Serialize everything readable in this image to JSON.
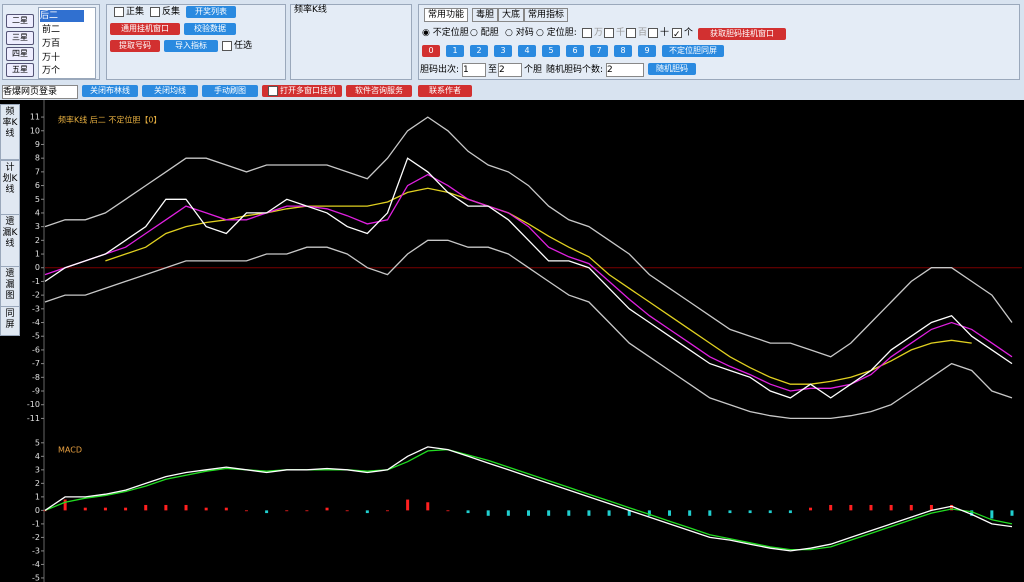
{
  "star_buttons": [
    "二星",
    "三星",
    "四星",
    "五星"
  ],
  "position_list": [
    "后二",
    "前二",
    "万百",
    "万十",
    "万个"
  ],
  "panel1": {
    "check1": "正集",
    "check2": "反集",
    "btn_list": "开奖列表",
    "btn_window": "通用挂机窗口",
    "btn_check": "校验数据",
    "btn_extract": "提取号码",
    "btn_import": "导入指标",
    "check_any": "任选"
  },
  "group_title": "频率K线",
  "tabs": [
    "常用功能",
    "毒胆",
    "大底",
    "常用指标"
  ],
  "radios": [
    "不定位胆",
    "配胆",
    "对码",
    "定位胆:"
  ],
  "digit_checks": [
    "万",
    "千",
    "百",
    "十",
    "个"
  ],
  "btn_get": "获取胆码挂机窗口",
  "numbers": [
    "0",
    "1",
    "2",
    "3",
    "4",
    "5",
    "6",
    "7",
    "8",
    "9"
  ],
  "btn_same": "不定位胆同屏",
  "count_row": {
    "label": "胆码出次:",
    "from": "1",
    "to_word": "至",
    "to": "2",
    "unit": "个胆",
    "random_label": "随机胆码个数:",
    "random_count": "2",
    "random_btn": "随机胆码"
  },
  "toolbar": {
    "login": "香爆网页登录",
    "buttons": [
      "关闭布林线",
      "关闭均线",
      "手动刷图",
      "打开多窗口挂机",
      "软件咨询服务",
      "联系作者"
    ]
  },
  "side_tabs": [
    "频率K线",
    "计划K线",
    "遗漏K线",
    "遗漏图",
    "同屏"
  ],
  "chart_data": [
    {
      "type": "line",
      "title": "频率K线 后二 不定位胆【0】",
      "ylim": [
        -11.7,
        12.1
      ],
      "yticks": [
        11,
        10,
        9,
        8,
        7,
        6,
        5,
        4,
        3,
        2,
        1,
        0,
        -1,
        -2,
        -3,
        -4,
        -5,
        -6,
        -7,
        -8,
        -9,
        -10,
        -11
      ],
      "baseline_color": "#7a0000",
      "series": [
        {
          "color": "#c8c8c8",
          "values": [
            3,
            3.5,
            3.5,
            4,
            5,
            6,
            7,
            8,
            8,
            7.5,
            7,
            7.5,
            7.5,
            7.5,
            7.5,
            7,
            6.5,
            8,
            10,
            11,
            10,
            8.5,
            7.5,
            7,
            6,
            4.5,
            3.5,
            3,
            2,
            1,
            -0.5,
            -1.5,
            -2.5,
            -3.5,
            -4.5,
            -5,
            -5.5,
            -5.5,
            -6,
            -6.5,
            -5.5,
            -4,
            -2.5,
            -1,
            0,
            0,
            -1,
            -2,
            -4
          ]
        },
        {
          "color": "#c8c8c8",
          "values": [
            -2.5,
            -2,
            -2,
            -1.5,
            -1,
            -0.5,
            0,
            0.5,
            0.5,
            0.5,
            0.5,
            1,
            1,
            1.5,
            1.5,
            1,
            0,
            -0.5,
            1,
            2,
            2,
            1.5,
            1.5,
            1,
            0,
            -1,
            -2,
            -2.5,
            -4,
            -5.5,
            -6.5,
            -7.5,
            -8.5,
            -9.5,
            -10,
            -10.5,
            -10.8,
            -11,
            -11,
            -11,
            -10.8,
            -10.5,
            -10,
            -9,
            -8,
            -7,
            -7.5,
            -9,
            -9.5
          ]
        },
        {
          "color": "#e0d020",
          "values": [
            null,
            null,
            null,
            0.5,
            1,
            1.5,
            2.5,
            3,
            3.3,
            3.5,
            3.8,
            4,
            4.3,
            4.5,
            4.5,
            4.5,
            4.5,
            4.8,
            5.5,
            5.8,
            5.5,
            5,
            4.5,
            4,
            3.2,
            2.3,
            1.5,
            0.8,
            -0.5,
            -1.5,
            -2.5,
            -3.5,
            -4.5,
            -5.5,
            -6.5,
            -7.3,
            -8,
            -8.5,
            -8.5,
            -8.3,
            -8,
            -7.5,
            -6.8,
            -6,
            -5.5,
            -5.3,
            -5.5,
            null,
            null
          ]
        },
        {
          "color": "#e020e0",
          "values": [
            -0.5,
            0,
            0.5,
            1,
            1.5,
            2.5,
            3.5,
            4.5,
            4,
            3.5,
            3.5,
            4,
            4.5,
            4.5,
            4.3,
            3.8,
            3.2,
            3.5,
            6,
            6.8,
            6,
            5,
            4.5,
            4,
            3,
            1.5,
            0.8,
            0.3,
            -1,
            -2.3,
            -3.5,
            -4.5,
            -5.5,
            -6.5,
            -7.2,
            -7.8,
            -8.5,
            -9,
            -8.8,
            -8.8,
            -8.5,
            -7.8,
            -6.5,
            -5.5,
            -4.5,
            -4,
            -4.5,
            -5.5,
            -6.5
          ]
        },
        {
          "color": "#ffffff",
          "values": [
            -1,
            0,
            0.5,
            1,
            2,
            3,
            5,
            5,
            3,
            2.5,
            4,
            4,
            5,
            4.5,
            4,
            3,
            2.5,
            4,
            8,
            7,
            5.5,
            4.5,
            4.5,
            3.5,
            2,
            0.5,
            0.5,
            0,
            -1.5,
            -3,
            -4,
            -5,
            -6,
            -7,
            -7.5,
            -8,
            -9,
            -9.5,
            -8.5,
            -9.5,
            -8.5,
            -7.5,
            -6,
            -5,
            -4,
            -3.5,
            -5,
            -6,
            -7
          ]
        }
      ]
    },
    {
      "type": "macd",
      "title": "MACD",
      "ylim": [
        -5.3,
        5.8
      ],
      "yticks": [
        5,
        4,
        3,
        2,
        1,
        0,
        -1,
        -2,
        -3,
        -4,
        -5
      ],
      "series": [
        {
          "type": "bar",
          "up_color": "#ff2020",
          "down_color": "#20d0d0",
          "values": [
            0,
            0.8,
            0.2,
            0.2,
            0.2,
            0.4,
            0.4,
            0.4,
            0.2,
            0.2,
            0,
            -0.2,
            0,
            0,
            0.2,
            0,
            -0.2,
            0,
            0.8,
            0.6,
            0,
            -0.2,
            -0.4,
            -0.4,
            -0.4,
            -0.4,
            -0.4,
            -0.4,
            -0.4,
            -0.4,
            -0.4,
            -0.4,
            -0.4,
            -0.4,
            -0.2,
            -0.2,
            -0.2,
            -0.2,
            0.2,
            0.4,
            0.4,
            0.4,
            0.4,
            0.4,
            0.4,
            0.4,
            -0.4,
            -0.6,
            -0.4
          ]
        },
        {
          "type": "line",
          "color": "#22dd22",
          "values": [
            0,
            0.6,
            0.9,
            1.1,
            1.4,
            1.8,
            2.3,
            2.6,
            2.9,
            3.1,
            3,
            2.9,
            3,
            3,
            3,
            3,
            2.9,
            3,
            3.6,
            4.4,
            4.5,
            4.1,
            3.7,
            3.2,
            2.7,
            2.2,
            1.7,
            1.2,
            0.7,
            0.2,
            -0.3,
            -0.8,
            -1.3,
            -1.8,
            -2.1,
            -2.4,
            -2.7,
            -2.9,
            -2.9,
            -2.7,
            -2.2,
            -1.7,
            -1.2,
            -0.7,
            -0.2,
            0.1,
            -0.1,
            -0.7,
            -1
          ]
        },
        {
          "type": "line",
          "color": "#ffffff",
          "values": [
            0,
            1,
            1,
            1.2,
            1.5,
            2,
            2.5,
            2.8,
            3,
            3.2,
            3,
            2.8,
            3,
            3,
            3.1,
            3,
            2.8,
            3,
            4,
            4.7,
            4.5,
            4,
            3.5,
            3,
            2.5,
            2,
            1.5,
            1,
            0.5,
            0,
            -0.5,
            -1,
            -1.5,
            -2,
            -2.2,
            -2.5,
            -2.8,
            -3,
            -2.8,
            -2.5,
            -2,
            -1.5,
            -1,
            -0.5,
            0,
            0.3,
            -0.3,
            -1,
            -1.2
          ]
        }
      ]
    }
  ]
}
